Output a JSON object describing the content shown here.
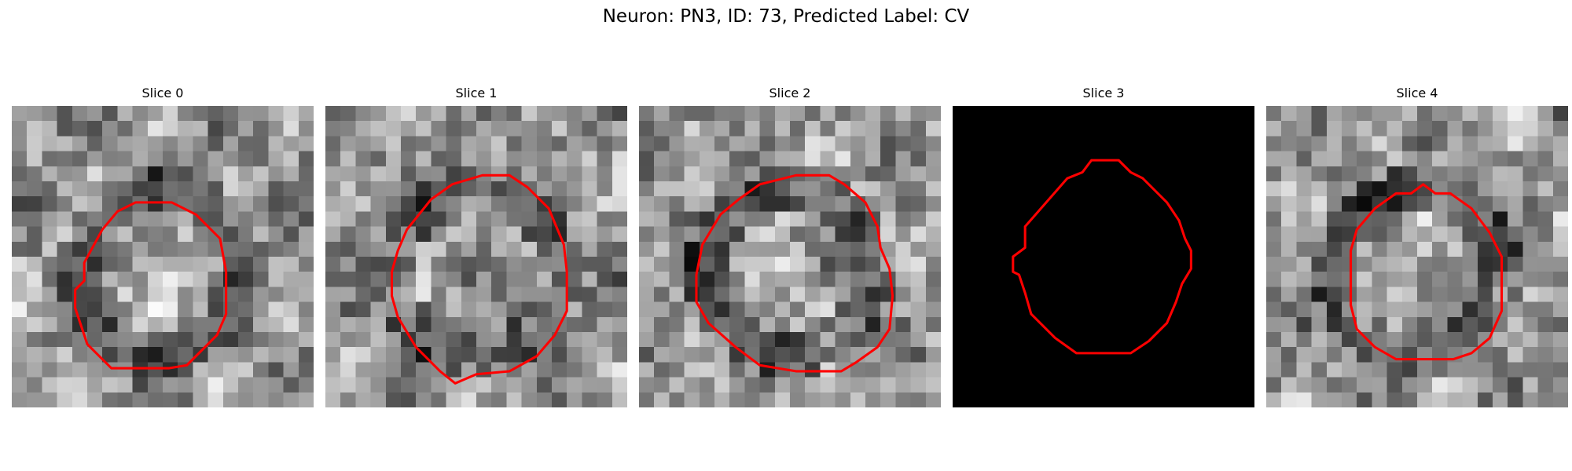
{
  "figure": {
    "title": "Neuron: PN3, ID: 73, Predicted Label: CV"
  },
  "panels": [
    {
      "title": "Slice 0",
      "blank": false,
      "seed": 11,
      "contour": [
        [
          4.2,
          12.2
        ],
        [
          4.8,
          11.6
        ],
        [
          4.8,
          10.4
        ],
        [
          6.0,
          8.2
        ],
        [
          7.0,
          7.0
        ],
        [
          8.2,
          6.4
        ],
        [
          10.6,
          6.4
        ],
        [
          12.2,
          7.2
        ],
        [
          13.8,
          8.8
        ],
        [
          14.2,
          11.0
        ],
        [
          14.2,
          13.8
        ],
        [
          13.6,
          15.2
        ],
        [
          11.6,
          17.2
        ],
        [
          10.4,
          17.4
        ],
        [
          6.6,
          17.4
        ],
        [
          5.0,
          15.8
        ],
        [
          4.2,
          13.4
        ]
      ]
    },
    {
      "title": "Slice 1",
      "blank": false,
      "seed": 23,
      "contour": [
        [
          4.4,
          11.0
        ],
        [
          4.8,
          9.6
        ],
        [
          5.4,
          8.2
        ],
        [
          7.0,
          6.2
        ],
        [
          8.4,
          5.2
        ],
        [
          10.4,
          4.6
        ],
        [
          12.2,
          4.6
        ],
        [
          13.4,
          5.4
        ],
        [
          14.8,
          6.8
        ],
        [
          15.8,
          9.2
        ],
        [
          16.0,
          11.0
        ],
        [
          16.0,
          13.6
        ],
        [
          15.2,
          15.2
        ],
        [
          14.0,
          16.6
        ],
        [
          12.2,
          17.6
        ],
        [
          10.0,
          17.8
        ],
        [
          8.6,
          18.4
        ],
        [
          7.6,
          17.6
        ],
        [
          6.0,
          16.0
        ],
        [
          4.8,
          14.0
        ],
        [
          4.4,
          12.6
        ]
      ]
    },
    {
      "title": "Slice 2",
      "blank": false,
      "seed": 37,
      "contour": [
        [
          3.8,
          11.2
        ],
        [
          4.2,
          9.2
        ],
        [
          5.4,
          7.2
        ],
        [
          6.6,
          6.2
        ],
        [
          8.0,
          5.2
        ],
        [
          10.4,
          4.6
        ],
        [
          12.6,
          4.6
        ],
        [
          13.6,
          5.2
        ],
        [
          15.0,
          6.4
        ],
        [
          15.8,
          8.0
        ],
        [
          16.0,
          9.4
        ],
        [
          16.6,
          10.8
        ],
        [
          16.8,
          12.6
        ],
        [
          16.6,
          14.8
        ],
        [
          15.8,
          16.0
        ],
        [
          14.4,
          17.0
        ],
        [
          13.4,
          17.6
        ],
        [
          10.4,
          17.6
        ],
        [
          8.0,
          17.2
        ],
        [
          6.4,
          16.0
        ],
        [
          4.6,
          14.4
        ],
        [
          3.8,
          13.0
        ]
      ]
    },
    {
      "title": "Slice 3",
      "blank": true,
      "seed": 0,
      "contour": [
        [
          4.0,
          10.0
        ],
        [
          4.8,
          9.4
        ],
        [
          4.8,
          8.0
        ],
        [
          6.2,
          6.4
        ],
        [
          7.6,
          4.8
        ],
        [
          8.6,
          4.4
        ],
        [
          9.2,
          3.6
        ],
        [
          11.0,
          3.6
        ],
        [
          11.8,
          4.4
        ],
        [
          12.6,
          4.8
        ],
        [
          14.2,
          6.4
        ],
        [
          15.0,
          7.6
        ],
        [
          15.4,
          8.8
        ],
        [
          15.8,
          9.6
        ],
        [
          15.8,
          10.8
        ],
        [
          15.2,
          11.8
        ],
        [
          14.8,
          13.0
        ],
        [
          14.2,
          14.4
        ],
        [
          13.0,
          15.6
        ],
        [
          11.8,
          16.4
        ],
        [
          8.2,
          16.4
        ],
        [
          6.8,
          15.4
        ],
        [
          5.2,
          13.8
        ],
        [
          4.8,
          12.4
        ],
        [
          4.4,
          11.2
        ],
        [
          4.0,
          11.0
        ]
      ]
    },
    {
      "title": "Slice 4",
      "blank": false,
      "seed": 41,
      "contour": [
        [
          5.6,
          9.6
        ],
        [
          6.0,
          8.2
        ],
        [
          7.2,
          6.8
        ],
        [
          8.6,
          5.8
        ],
        [
          9.6,
          5.8
        ],
        [
          10.4,
          5.2
        ],
        [
          11.2,
          5.8
        ],
        [
          12.2,
          5.8
        ],
        [
          13.6,
          6.8
        ],
        [
          14.8,
          8.4
        ],
        [
          15.6,
          10.0
        ],
        [
          15.6,
          13.6
        ],
        [
          14.8,
          15.4
        ],
        [
          13.6,
          16.4
        ],
        [
          12.4,
          16.8
        ],
        [
          8.6,
          16.8
        ],
        [
          7.2,
          16.0
        ],
        [
          6.0,
          14.8
        ],
        [
          5.6,
          13.2
        ]
      ]
    }
  ],
  "colors": {
    "contour": "#ff0000",
    "background": "#ffffff"
  }
}
